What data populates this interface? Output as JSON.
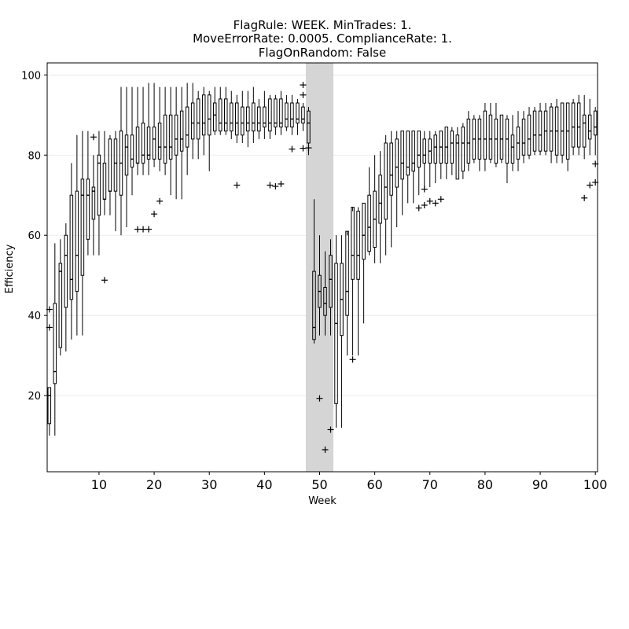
{
  "chart_data": {
    "type": "box",
    "title_lines": [
      "FlagRule: WEEK. MinTrades: 1.",
      "MoveErrorRate: 0.0005. ComplianceRate: 1.",
      "FlagOnRandom: False"
    ],
    "xlabel": "Week",
    "ylabel": "Efficiency",
    "xlim": [
      0.6,
      100.4
    ],
    "ylim": [
      1,
      103
    ],
    "x_ticks": [
      10,
      20,
      30,
      40,
      50,
      60,
      70,
      80,
      90,
      100
    ],
    "y_ticks": [
      20,
      40,
      60,
      80,
      100
    ],
    "grid": true,
    "shaded_span": [
      47.5,
      52.5
    ],
    "box_color": "#000000",
    "shade_color": "#d3d3d3",
    "weeks": [
      1,
      2,
      3,
      4,
      5,
      6,
      7,
      8,
      9,
      10,
      11,
      12,
      13,
      14,
      15,
      16,
      17,
      18,
      19,
      20,
      21,
      22,
      23,
      24,
      25,
      26,
      27,
      28,
      29,
      30,
      31,
      32,
      33,
      34,
      35,
      36,
      37,
      38,
      39,
      40,
      41,
      42,
      43,
      44,
      45,
      46,
      47,
      48,
      49,
      50,
      51,
      52,
      53,
      54,
      55,
      56,
      57,
      58,
      59,
      60,
      61,
      62,
      63,
      64,
      65,
      66,
      67,
      68,
      69,
      70,
      71,
      72,
      73,
      74,
      75,
      76,
      77,
      78,
      79,
      80,
      81,
      82,
      83,
      84,
      85,
      86,
      87,
      88,
      89,
      90,
      91,
      92,
      93,
      94,
      95,
      96,
      97,
      98,
      99,
      100
    ],
    "q1": [
      13,
      23,
      32,
      42,
      44,
      46,
      50,
      59,
      64,
      65,
      69,
      71,
      71,
      70,
      75,
      77,
      78,
      78,
      79,
      79,
      79,
      78,
      79,
      80,
      81,
      82,
      84,
      84,
      85,
      85,
      86,
      86,
      86,
      86,
      85,
      85,
      86,
      86,
      86,
      87,
      86,
      87,
      87,
      87,
      87,
      88,
      88,
      83,
      34,
      42,
      40,
      42,
      18,
      35,
      40,
      49,
      49,
      54,
      56,
      57,
      63,
      64,
      70,
      72,
      74,
      75,
      76,
      77,
      78,
      78,
      78,
      78,
      78,
      78,
      74,
      76,
      78,
      79,
      79,
      79,
      79,
      78,
      79,
      78,
      78,
      79,
      80,
      80,
      81,
      81,
      81,
      81,
      80,
      80,
      79,
      82,
      82,
      82,
      84,
      85
    ],
    "median": [
      20,
      26,
      51,
      55,
      49,
      55,
      70,
      70,
      71,
      78,
      69,
      71,
      78,
      78,
      82,
      79,
      78,
      80,
      80,
      84,
      82,
      82,
      82,
      84,
      84,
      85,
      88,
      88,
      88,
      89,
      90,
      88,
      88,
      88,
      88,
      88,
      88,
      88,
      88,
      88,
      88,
      88,
      88,
      89,
      89,
      89,
      89,
      88,
      37,
      46,
      43,
      49,
      38,
      44,
      46,
      55,
      55,
      60,
      62,
      64,
      68,
      72,
      75,
      77,
      78,
      77,
      78,
      80,
      80,
      81,
      82,
      82,
      82,
      83,
      83,
      83,
      83,
      84,
      84,
      84,
      84,
      84,
      84,
      84,
      82,
      83,
      83,
      84,
      85,
      85,
      86,
      86,
      86,
      86,
      86,
      87,
      87,
      88,
      86,
      87
    ],
    "q3": [
      22,
      43,
      53,
      60,
      70,
      71,
      74,
      74,
      72,
      80,
      78,
      84,
      84,
      86,
      85,
      85,
      87,
      88,
      87,
      87,
      88,
      90,
      90,
      90,
      91,
      92,
      93,
      94,
      95,
      95,
      93,
      94,
      94,
      93,
      93,
      92,
      92,
      93,
      92,
      92,
      94,
      94,
      94,
      93,
      93,
      93,
      92,
      91,
      51,
      50,
      47,
      55,
      53,
      53,
      61,
      67,
      66,
      68,
      70,
      71,
      75,
      83,
      83,
      84,
      86,
      86,
      86,
      86,
      84,
      84,
      85,
      86,
      87,
      86,
      85,
      87,
      89,
      89,
      89,
      91,
      90,
      89,
      90,
      89,
      85,
      87,
      89,
      90,
      91,
      91,
      91,
      92,
      92,
      93,
      93,
      93,
      93,
      90,
      90,
      91
    ],
    "wlo": [
      10,
      10,
      30,
      31,
      34,
      35,
      35,
      55,
      55,
      55,
      65,
      65,
      61,
      60,
      62,
      70,
      75,
      75,
      75,
      77,
      76,
      75,
      70,
      69,
      69,
      75,
      79,
      79,
      80,
      76,
      85,
      85,
      85,
      84,
      83,
      83,
      82,
      83,
      84,
      84,
      84,
      85,
      85,
      86,
      85,
      85,
      86,
      80,
      33,
      35,
      35,
      35,
      12,
      12,
      30,
      30,
      30,
      38,
      55,
      53,
      53,
      55,
      57,
      62,
      65,
      68,
      68,
      70,
      72,
      72,
      73,
      74,
      74,
      75,
      74,
      74,
      76,
      78,
      76,
      76,
      78,
      77,
      78,
      73,
      76,
      76,
      78,
      79,
      80,
      80,
      80,
      78,
      78,
      78,
      76,
      80,
      80,
      79,
      80,
      80
    ],
    "whi": [
      22,
      58,
      59,
      63,
      78,
      85,
      86,
      86,
      80,
      86,
      86,
      85,
      86,
      97,
      97,
      97,
      97,
      97,
      98,
      98,
      97,
      97,
      97,
      97,
      97,
      98,
      98,
      96,
      97,
      96,
      97,
      97,
      97,
      96,
      95,
      96,
      96,
      97,
      94,
      96,
      95,
      95,
      96,
      95,
      95,
      94,
      93,
      92,
      69,
      60,
      56,
      59,
      60,
      60,
      60,
      66,
      67,
      68,
      77,
      80,
      81,
      85,
      86,
      86,
      86,
      86,
      86,
      86,
      86,
      86,
      86,
      86,
      87,
      87,
      87,
      88,
      91,
      90,
      90,
      93,
      93,
      93,
      90,
      90,
      90,
      91,
      91,
      92,
      92,
      93,
      93,
      93,
      94,
      93,
      93,
      94,
      95,
      95,
      94,
      92
    ],
    "outlier_points": [
      [
        1,
        37
      ],
      [
        1,
        41.5
      ],
      [
        9,
        84.5
      ],
      [
        11,
        48.8
      ],
      [
        17,
        61.5
      ],
      [
        18,
        61.5
      ],
      [
        19,
        61.5
      ],
      [
        20,
        65.3
      ],
      [
        21,
        68.5
      ],
      [
        35,
        72.5
      ],
      [
        41,
        72.5
      ],
      [
        42,
        72.2
      ],
      [
        43,
        72.8
      ],
      [
        45,
        81.5
      ],
      [
        47,
        81.7
      ],
      [
        47,
        97.5
      ],
      [
        47,
        95
      ],
      [
        48,
        81.8
      ],
      [
        50,
        19.3
      ],
      [
        51,
        6.5
      ],
      [
        52,
        11.5
      ],
      [
        56,
        29
      ],
      [
        68,
        66.8
      ],
      [
        69,
        67.5
      ],
      [
        69,
        71.5
      ],
      [
        70,
        68.5
      ],
      [
        71,
        68
      ],
      [
        72,
        69
      ],
      [
        98,
        69.3
      ],
      [
        99,
        72.5
      ],
      [
        100,
        73.2
      ],
      [
        100,
        77.8
      ]
    ]
  }
}
